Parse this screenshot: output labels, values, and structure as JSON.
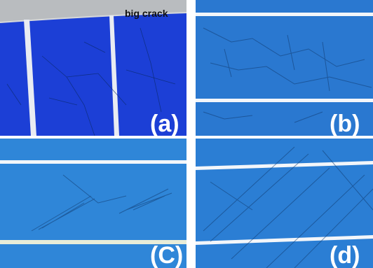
{
  "panels": [
    {
      "label": "(a)",
      "annotation": "big crack"
    },
    {
      "label": "(b)"
    },
    {
      "label": "(C)"
    },
    {
      "label": "(d)"
    }
  ]
}
